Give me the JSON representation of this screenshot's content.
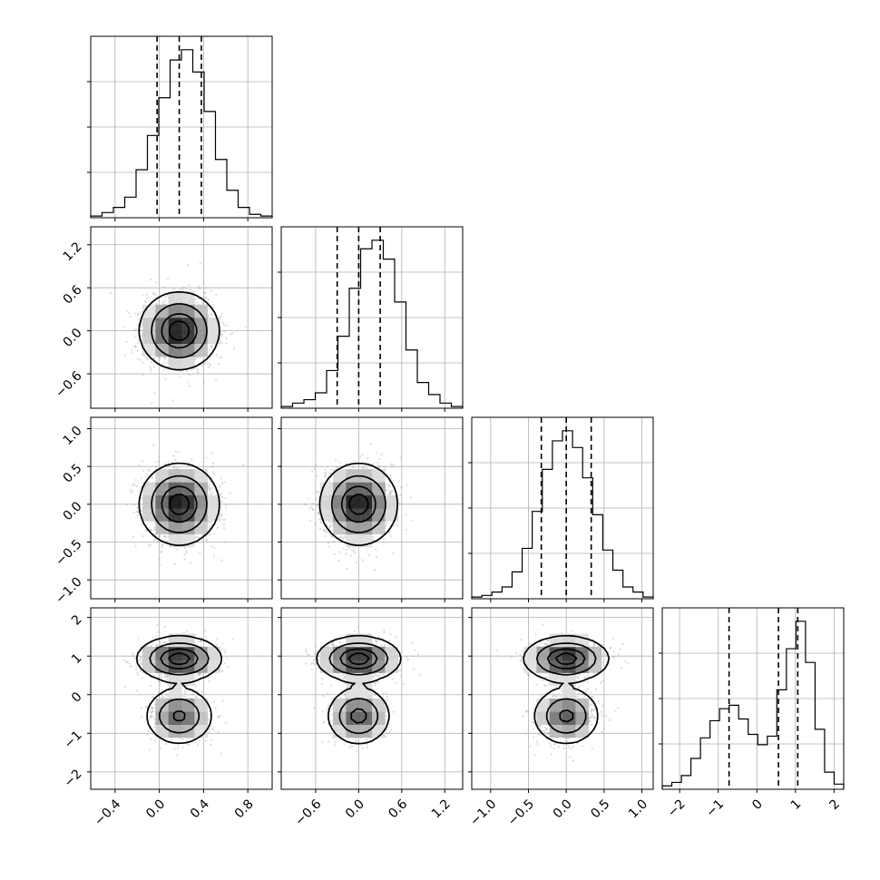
{
  "chart_data": {
    "type": "corner",
    "n_params": 4,
    "grid": true,
    "params": [
      {
        "index": 0,
        "range": [
          -0.62,
          1.02
        ],
        "ticks": [
          -0.4,
          0.0,
          0.4,
          0.8
        ],
        "tick_labels": [
          "−0.4",
          "0.0",
          "0.4",
          "0.8"
        ],
        "quantiles": [
          -0.02,
          0.18,
          0.38
        ],
        "hist": [
          1,
          3,
          6,
          12,
          28,
          48,
          70,
          92,
          98,
          85,
          62,
          34,
          16,
          6,
          2,
          1
        ]
      },
      {
        "index": 1,
        "range": [
          -1.08,
          1.45
        ],
        "ticks": [
          -0.6,
          0.0,
          0.6,
          1.2
        ],
        "tick_labels": [
          "−0.6",
          "0.0",
          "0.6",
          "1.2"
        ],
        "quantiles": [
          -0.3,
          0.0,
          0.3
        ],
        "hist": [
          1,
          3,
          5,
          9,
          22,
          42,
          70,
          93,
          98,
          87,
          62,
          34,
          15,
          8,
          3,
          1
        ]
      },
      {
        "index": 2,
        "range": [
          -1.25,
          1.15
        ],
        "ticks": [
          -1.0,
          -0.5,
          0.0,
          0.5,
          1.0
        ],
        "tick_labels": [
          "−1.0",
          "−0.5",
          "0.0",
          "0.5",
          "1.0"
        ],
        "quantiles": [
          -0.33,
          0.0,
          0.33
        ],
        "hist": [
          1,
          2,
          4,
          7,
          16,
          30,
          52,
          77,
          94,
          100,
          90,
          72,
          50,
          29,
          17,
          7,
          4,
          1
        ]
      },
      {
        "index": 3,
        "range": [
          -2.45,
          2.25
        ],
        "ticks": [
          -2,
          -1,
          0,
          1,
          2
        ],
        "tick_labels": [
          "−2",
          "−1",
          "0",
          "1",
          "2"
        ],
        "quantiles": [
          -0.72,
          0.56,
          1.06
        ],
        "hist": [
          2,
          4,
          8,
          18,
          30,
          40,
          47,
          49,
          41,
          32,
          26,
          31,
          58,
          82,
          98,
          74,
          35,
          10,
          3
        ]
      }
    ],
    "pairs": [
      {
        "x": 0,
        "y": 1,
        "center": [
          0.18,
          0.0
        ],
        "sd": [
          0.16,
          0.24
        ]
      },
      {
        "x": 0,
        "y": 2,
        "center": [
          0.18,
          0.0
        ],
        "sd": [
          0.16,
          0.24
        ]
      },
      {
        "x": 1,
        "y": 2,
        "center": [
          0.0,
          0.0
        ],
        "sd": [
          0.24,
          0.24
        ]
      },
      {
        "x": 0,
        "y": 3,
        "modes": [
          {
            "center": [
              0.18,
              0.93
            ],
            "sd": [
              0.17,
              0.26
            ],
            "weight": 0.58
          },
          {
            "center": [
              0.18,
              -0.55
            ],
            "sd": [
              0.14,
              0.34
            ],
            "weight": 0.42
          }
        ]
      },
      {
        "x": 1,
        "y": 3,
        "modes": [
          {
            "center": [
              0.0,
              0.93
            ],
            "sd": [
              0.26,
              0.26
            ],
            "weight": 0.58
          },
          {
            "center": [
              0.0,
              -0.55
            ],
            "sd": [
              0.2,
              0.34
            ],
            "weight": 0.42
          }
        ]
      },
      {
        "x": 2,
        "y": 3,
        "modes": [
          {
            "center": [
              0.0,
              0.93
            ],
            "sd": [
              0.25,
              0.26
            ],
            "weight": 0.58
          },
          {
            "center": [
              0.0,
              -0.55
            ],
            "sd": [
              0.2,
              0.34
            ],
            "weight": 0.42
          }
        ]
      }
    ]
  }
}
